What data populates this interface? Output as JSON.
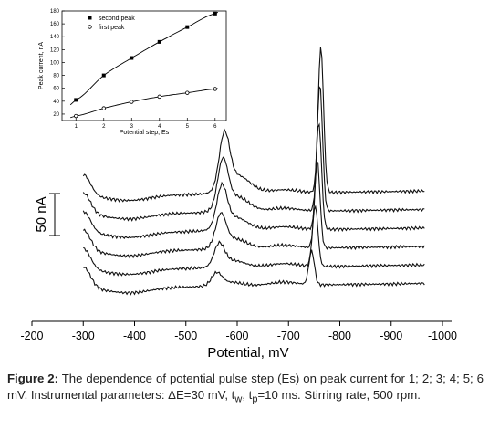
{
  "chart_data": [
    {
      "type": "line",
      "title": "",
      "xlabel": "Potential, mV",
      "ylabel": "",
      "x_reversed": true,
      "xlim": [
        -200,
        -1000
      ],
      "x_ticks": [
        -200,
        -300,
        -400,
        -500,
        -600,
        -700,
        -800,
        -900,
        -1000
      ],
      "x_tick_labels": [
        "-200",
        "-300",
        "-400",
        "-500",
        "-600",
        "-700",
        "-800",
        "-900",
        "-1000"
      ],
      "scale_bar_label": "50 nA",
      "scale_bar_nA": 50,
      "grid": false,
      "series_order_bottom_to_top": [
        1,
        2,
        3,
        4,
        5,
        6
      ],
      "series_offsets_nA": [
        0,
        22,
        44,
        66,
        88,
        110
      ],
      "series_peak_potentials_mV": {
        "first_peak": [
          -560,
          -565,
          -568,
          -570,
          -572,
          -575
        ],
        "second_peak": [
          -745,
          -752,
          -756,
          -759,
          -761,
          -763
        ]
      },
      "series_peak_heights_nA": {
        "first_peak": [
          14,
          25,
          36,
          46,
          54,
          62
        ],
        "second_peak": [
          40,
          72,
          104,
          127,
          150,
          173
        ]
      },
      "series_end_values_nA": [
        55,
        80,
        95,
        115,
        130,
        155
      ]
    },
    {
      "type": "scatter",
      "title": "",
      "xlabel": "Potential step, Es",
      "ylabel": "Peak current, nA",
      "xlim": [
        0.5,
        6.4
      ],
      "ylim": [
        10,
        180
      ],
      "x_ticks": [
        1,
        2,
        3,
        4,
        5,
        6
      ],
      "y_ticks": [
        20,
        40,
        60,
        80,
        100,
        120,
        140,
        160,
        180
      ],
      "legend_position": "top-center",
      "series": [
        {
          "name": "second peak",
          "marker": "square-filled",
          "x": [
            1,
            2,
            3,
            4,
            5,
            6
          ],
          "values": [
            42,
            80,
            107,
            132,
            155,
            176
          ]
        },
        {
          "name": "first peak",
          "marker": "circle-open",
          "x": [
            1,
            2,
            3,
            4,
            5,
            6
          ],
          "values": [
            17,
            29,
            39,
            47,
            53,
            59
          ]
        }
      ]
    }
  ],
  "caption": {
    "label": "Figure 2:",
    "text": " The dependence of potential pulse step (Es) on peak current for 1; 2; 3; 4; 5; 6 mV. Instrumental parameters: ΔE=30 mV, t",
    "sub_w": "w",
    "mid": ", t",
    "sub_p": "p",
    "rest": "=10 ms. Stirring rate, 500 rpm."
  }
}
